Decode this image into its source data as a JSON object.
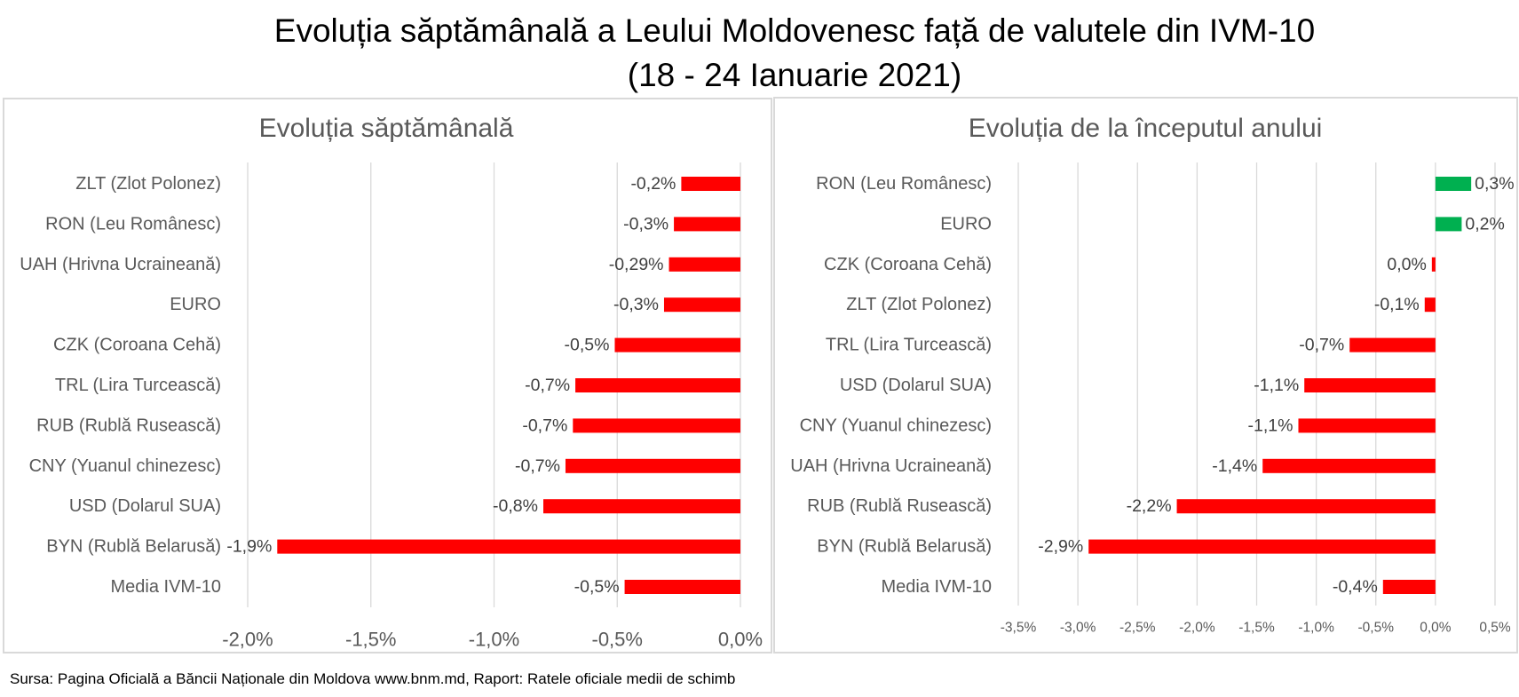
{
  "page": {
    "title_line1": "Evoluția săptămânală a Leului Moldovenesc față de valutele din IVM-10",
    "title_line2": "(18 - 24 Ianuarie 2021)",
    "source": "Sursa: Pagina Oficială a Băncii Naționale din Moldova www.bnm.md, Raport: Ratele oficiale medii de schimb"
  },
  "colors": {
    "negative": "#FF0000",
    "positive": "#00B050",
    "text": "#595959",
    "grid": "#D9D9D9"
  },
  "chart_data": [
    {
      "type": "bar",
      "orientation": "horizontal",
      "title": "Evoluția săptămânală",
      "xlabel": "",
      "ylabel": "",
      "unit": "%",
      "grid": "vertical",
      "legend": "none",
      "categories": [
        "ZLT (Zlot Polonez)",
        "RON (Leu Românesc)",
        "UAH (Hrivna Ucraineană)",
        "EURO",
        "CZK (Coroana Cehă)",
        "TRL (Lira Turcească)",
        "RUB (Rublă Rusească)",
        "CNY (Yuanul chinezesc)",
        "USD (Dolarul SUA)",
        "BYN (Rublă Belarusă)",
        "Media IVM-10"
      ],
      "values": [
        -0.24,
        -0.27,
        -0.29,
        -0.31,
        -0.51,
        -0.67,
        -0.68,
        -0.71,
        -0.8,
        -1.88,
        -0.47
      ],
      "data_labels": [
        "-0,2%",
        "-0,3%",
        "-0,29%",
        "-0,3%",
        "-0,5%",
        "-0,7%",
        "-0,7%",
        "-0,7%",
        "-0,8%",
        "-1,9%",
        "-0,5%"
      ],
      "xlim": [
        -2.0,
        0.0
      ],
      "xticks": [
        -2.0,
        -1.5,
        -1.0,
        -0.5,
        0.0
      ],
      "xtick_labels": [
        "-2,0%",
        "-1,5%",
        "-1,0%",
        "-0,5%",
        "0,0%"
      ]
    },
    {
      "type": "bar",
      "orientation": "horizontal",
      "title": "Evoluția de la începutul  anului",
      "xlabel": "",
      "ylabel": "",
      "unit": "%",
      "grid": "vertical",
      "legend": "none",
      "categories": [
        "RON (Leu Românesc)",
        "EURO",
        "CZK (Coroana Cehă)",
        "ZLT (Zlot Polonez)",
        "TRL (Lira Turcească)",
        "USD (Dolarul SUA)",
        "CNY (Yuanul chinezesc)",
        "UAH (Hrivna Ucraineană)",
        "RUB (Rublă Rusească)",
        "BYN (Rublă Belarusă)",
        "Media IVM-10"
      ],
      "values": [
        0.3,
        0.22,
        -0.03,
        -0.09,
        -0.72,
        -1.1,
        -1.15,
        -1.45,
        -2.17,
        -2.91,
        -0.44
      ],
      "data_labels": [
        "0,3%",
        "0,2%",
        "0,0%",
        "-0,1%",
        "-0,7%",
        "-1,1%",
        "-1,1%",
        "-1,4%",
        "-2,2%",
        "-2,9%",
        "-0,4%"
      ],
      "xlim": [
        -3.5,
        0.5
      ],
      "xticks": [
        -3.5,
        -3.0,
        -2.5,
        -2.0,
        -1.5,
        -1.0,
        -0.5,
        0.0,
        0.5
      ],
      "xtick_labels": [
        "-3,5%",
        "-3,0%",
        "-2,5%",
        "-2,0%",
        "-1,5%",
        "-1,0%",
        "-0,5%",
        "0,0%",
        "0,5%"
      ]
    }
  ]
}
